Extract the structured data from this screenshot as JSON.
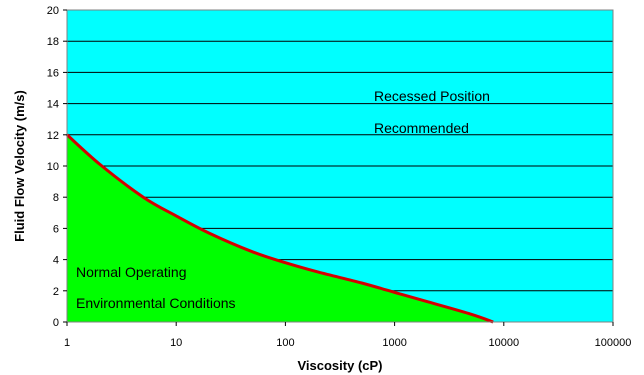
{
  "chart_data": {
    "type": "area",
    "title": "",
    "xlabel": "Viscosity (cP)",
    "ylabel": "Fluid Flow Velocity (m/s)",
    "x_scale": "log",
    "xlim": [
      1,
      100000
    ],
    "ylim": [
      0,
      20
    ],
    "x_ticks": [
      "1",
      "10",
      "100",
      "1000",
      "10000",
      "100000"
    ],
    "y_ticks": [
      "0",
      "2",
      "4",
      "6",
      "8",
      "10",
      "12",
      "14",
      "16",
      "18",
      "20"
    ],
    "grid": "horizontal",
    "legend": "none",
    "boundary_curve": {
      "x": [
        1,
        2,
        5,
        10,
        20,
        50,
        100,
        200,
        500,
        1000,
        2000,
        5000,
        8000
      ],
      "y": [
        12,
        10.1,
        8.0,
        6.8,
        5.7,
        4.5,
        3.8,
        3.2,
        2.5,
        1.9,
        1.3,
        0.5,
        0
      ]
    },
    "regions": [
      {
        "label_lines": [
          "Recessed Position",
          "Recommended"
        ],
        "color": "#00ffff",
        "position": "above-curve"
      },
      {
        "label_lines": [
          "Normal Operating",
          "Environmental Conditions"
        ],
        "color": "#00ff00",
        "position": "below-curve"
      }
    ],
    "curve_color": "#d40000"
  }
}
